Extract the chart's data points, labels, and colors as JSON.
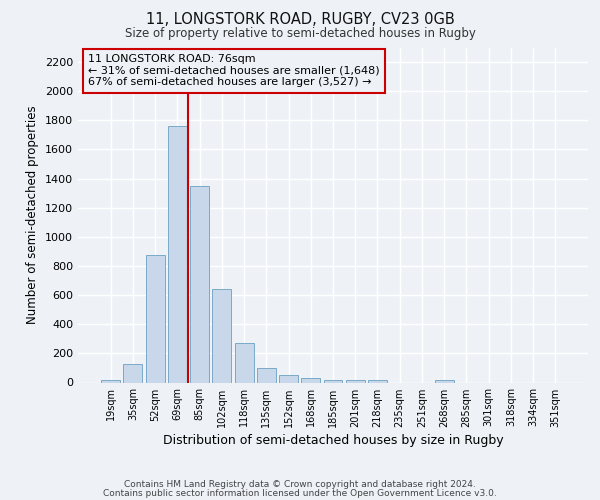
{
  "title_line1": "11, LONGSTORK ROAD, RUGBY, CV23 0GB",
  "title_line2": "Size of property relative to semi-detached houses in Rugby",
  "xlabel": "Distribution of semi-detached houses by size in Rugby",
  "ylabel": "Number of semi-detached properties",
  "bar_color": "#c8d8ea",
  "bar_edge_color": "#7aaac8",
  "categories": [
    "19sqm",
    "35sqm",
    "52sqm",
    "69sqm",
    "85sqm",
    "102sqm",
    "118sqm",
    "135sqm",
    "152sqm",
    "168sqm",
    "185sqm",
    "201sqm",
    "218sqm",
    "235sqm",
    "251sqm",
    "268sqm",
    "285sqm",
    "301sqm",
    "318sqm",
    "334sqm",
    "351sqm"
  ],
  "values": [
    15,
    130,
    875,
    1760,
    1350,
    645,
    270,
    100,
    50,
    30,
    20,
    15,
    20,
    0,
    0,
    20,
    0,
    0,
    0,
    0,
    0
  ],
  "ylim": [
    0,
    2300
  ],
  "yticks": [
    0,
    200,
    400,
    600,
    800,
    1000,
    1200,
    1400,
    1600,
    1800,
    2000,
    2200
  ],
  "property_line_label": "11 LONGSTORK ROAD: 76sqm",
  "annotation_line1": "← 31% of semi-detached houses are smaller (1,648)",
  "annotation_line2": "67% of semi-detached houses are larger (3,527) →",
  "vline_color": "#cc0000",
  "box_color": "#cc0000",
  "footnote1": "Contains HM Land Registry data © Crown copyright and database right 2024.",
  "footnote2": "Contains public sector information licensed under the Open Government Licence v3.0.",
  "background_color": "#eef2f7",
  "grid_color": "#ffffff",
  "vline_position": 3.5
}
